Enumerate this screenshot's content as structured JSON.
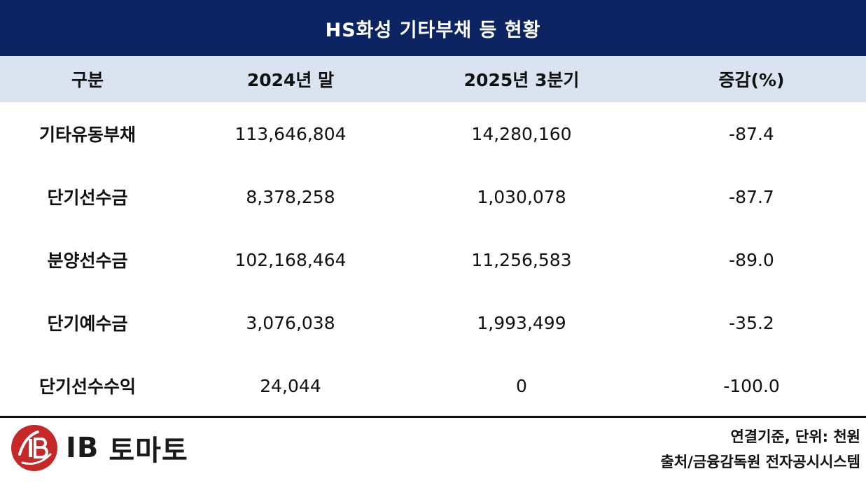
{
  "title": "HS화성 기타부채 등 현황",
  "headers": [
    "구분",
    "2024년 말",
    "2025년 3분기",
    "증감(%)"
  ],
  "rows": [
    {
      "label": "기타유동부채",
      "y2024": "113,646,804",
      "q3_2025": "14,280,160",
      "change": "-87.4"
    },
    {
      "label": "단기선수금",
      "y2024": "8,378,258",
      "q3_2025": "1,030,078",
      "change": "-87.7"
    },
    {
      "label": "분양선수금",
      "y2024": "102,168,464",
      "q3_2025": "11,256,583",
      "change": "-89.0"
    },
    {
      "label": "단기예수금",
      "y2024": "3,076,038",
      "q3_2025": "1,993,499",
      "change": "-35.2"
    },
    {
      "label": "단기선수수익",
      "y2024": "24,044",
      "q3_2025": "0",
      "change": "-100.0"
    }
  ],
  "logo": {
    "ib": "IB",
    "name": "토마토",
    "icon": "ib-tomato-logo-icon"
  },
  "notes": {
    "basis": "연결기준, 단위: 천원",
    "source": "출처/금융감독원 전자공시시스템"
  },
  "colors": {
    "title_bg": "#0c2461",
    "header_bg": "#dbe3f1",
    "logo_red": "#c62828"
  }
}
